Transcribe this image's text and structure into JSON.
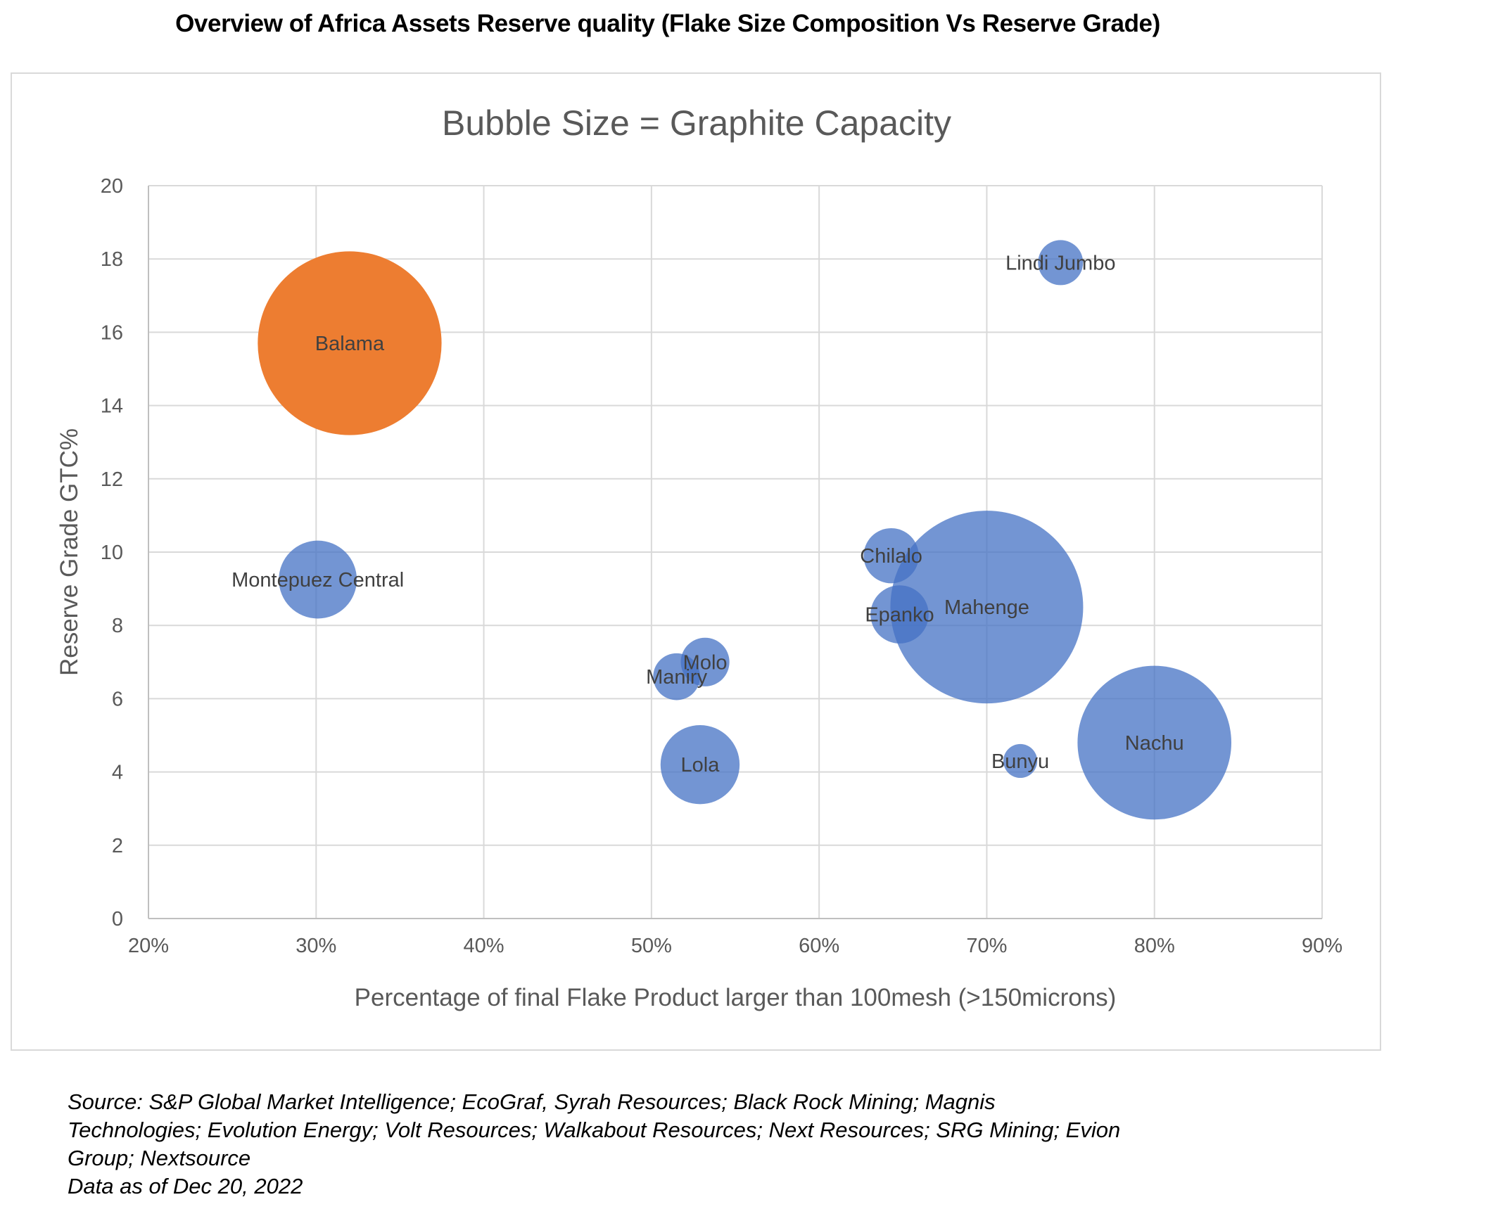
{
  "page_title": "Overview of Africa Assets Reserve quality (Flake Size Composition Vs Reserve Grade)",
  "chart_data": {
    "type": "scatter",
    "subtype": "bubble",
    "title": "Bubble Size = Graphite Capacity",
    "xlabel": "Percentage of final Flake Product larger than 100mesh (>150microns)",
    "ylabel": "Reserve Grade GTC%",
    "xlim": [
      0.2,
      0.9
    ],
    "ylim": [
      0,
      20
    ],
    "x_ticks": [
      0.2,
      0.3,
      0.4,
      0.5,
      0.6,
      0.7,
      0.8,
      0.9
    ],
    "x_tick_labels": [
      "20%",
      "30%",
      "40%",
      "50%",
      "60%",
      "70%",
      "80%",
      "90%"
    ],
    "y_ticks": [
      0,
      2,
      4,
      6,
      8,
      10,
      12,
      14,
      16,
      18,
      20
    ],
    "y_tick_labels": [
      "0",
      "2",
      "4",
      "6",
      "8",
      "10",
      "12",
      "14",
      "16",
      "18",
      "20"
    ],
    "grid": true,
    "bubble_note": "relative bubble size (capacity, unitless as shown)",
    "colors": {
      "default": "#4472c4",
      "highlight": "#ed7d31"
    },
    "points": [
      {
        "label": "Balama",
        "x": 0.32,
        "y": 15.7,
        "size": 100,
        "highlight": true
      },
      {
        "label": "Montepuez Central",
        "x": 0.301,
        "y": 9.25,
        "size": 18
      },
      {
        "label": "Lindi Jumbo",
        "x": 0.744,
        "y": 17.9,
        "size": 6
      },
      {
        "label": "Chilalo",
        "x": 0.643,
        "y": 9.9,
        "size": 9
      },
      {
        "label": "Epanko",
        "x": 0.648,
        "y": 8.3,
        "size": 10
      },
      {
        "label": "Mahenge",
        "x": 0.7,
        "y": 8.5,
        "size": 110
      },
      {
        "label": "Molo",
        "x": 0.532,
        "y": 7.0,
        "size": 7
      },
      {
        "label": "Maniry",
        "x": 0.515,
        "y": 6.6,
        "size": 6.5
      },
      {
        "label": "Lola",
        "x": 0.529,
        "y": 4.2,
        "size": 18.5
      },
      {
        "label": "Bunyu",
        "x": 0.72,
        "y": 4.3,
        "size": 3.4
      },
      {
        "label": "Nachu",
        "x": 0.8,
        "y": 4.8,
        "size": 70
      }
    ]
  },
  "source_lines": [
    "Source: S&P Global Market Intelligence; EcoGraf, Syrah Resources; Black Rock Mining; Magnis",
    "Technologies; Evolution Energy; Volt Resources; Walkabout Resources; Next Resources; SRG Mining; Evion",
    "Group; Nextsource",
    "Data as of Dec 20, 2022"
  ]
}
